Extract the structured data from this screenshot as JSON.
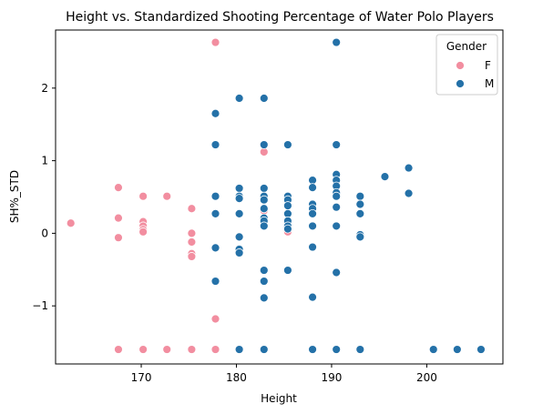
{
  "chart_data": {
    "type": "scatter",
    "title": "Height vs. Standardized Shooting Percentage of Water Polo Players",
    "xlabel": "Height",
    "ylabel": "SH%_STD",
    "xlim": [
      161,
      208
    ],
    "ylim": [
      -1.8,
      2.8
    ],
    "xticks": [
      170,
      180,
      190,
      200
    ],
    "yticks": [
      -1,
      0,
      1,
      2
    ],
    "ytick_labels": [
      "−1",
      "0",
      "1",
      "2"
    ],
    "grid": false,
    "legend": {
      "title": "Gender",
      "position": "top-right"
    },
    "series": [
      {
        "name": "F",
        "color": "#f28ea0",
        "points": [
          [
            162.6,
            0.14
          ],
          [
            167.6,
            0.63
          ],
          [
            167.6,
            0.21
          ],
          [
            167.6,
            -0.06
          ],
          [
            167.6,
            -1.6
          ],
          [
            170.2,
            0.51
          ],
          [
            170.2,
            0.16
          ],
          [
            170.2,
            0.1
          ],
          [
            170.2,
            0.05
          ],
          [
            170.2,
            0.02
          ],
          [
            170.2,
            -1.6
          ],
          [
            172.7,
            0.51
          ],
          [
            172.7,
            -1.6
          ],
          [
            175.3,
            0.34
          ],
          [
            175.3,
            0.0
          ],
          [
            175.3,
            -0.12
          ],
          [
            175.3,
            -0.28
          ],
          [
            175.3,
            -0.32
          ],
          [
            175.3,
            -1.6
          ],
          [
            177.8,
            2.63
          ],
          [
            177.8,
            -1.18
          ],
          [
            177.8,
            -1.6
          ],
          [
            180.3,
            -1.6
          ],
          [
            182.9,
            1.12
          ],
          [
            182.9,
            0.31
          ],
          [
            185.4,
            0.05
          ],
          [
            185.4,
            0.02
          ]
        ]
      },
      {
        "name": "M",
        "color": "#2471a8",
        "points": [
          [
            177.8,
            1.65
          ],
          [
            177.8,
            1.22
          ],
          [
            177.8,
            0.51
          ],
          [
            177.8,
            0.27
          ],
          [
            177.8,
            -0.2
          ],
          [
            177.8,
            -0.66
          ],
          [
            180.3,
            1.86
          ],
          [
            180.3,
            0.62
          ],
          [
            180.3,
            0.51
          ],
          [
            180.3,
            0.48
          ],
          [
            180.3,
            0.27
          ],
          [
            180.3,
            -0.05
          ],
          [
            180.3,
            -0.22
          ],
          [
            180.3,
            -0.27
          ],
          [
            180.3,
            -1.6
          ],
          [
            182.9,
            1.86
          ],
          [
            182.9,
            1.22
          ],
          [
            182.9,
            0.62
          ],
          [
            182.9,
            0.51
          ],
          [
            182.9,
            0.46
          ],
          [
            182.9,
            0.34
          ],
          [
            182.9,
            0.21
          ],
          [
            182.9,
            0.17
          ],
          [
            182.9,
            0.1
          ],
          [
            182.9,
            -0.51
          ],
          [
            182.9,
            -0.66
          ],
          [
            182.9,
            -0.89
          ],
          [
            182.9,
            -1.6
          ],
          [
            185.4,
            1.22
          ],
          [
            185.4,
            0.51
          ],
          [
            185.4,
            0.46
          ],
          [
            185.4,
            0.38
          ],
          [
            185.4,
            0.27
          ],
          [
            185.4,
            0.17
          ],
          [
            185.4,
            0.1
          ],
          [
            185.4,
            0.06
          ],
          [
            185.4,
            -0.51
          ],
          [
            188.0,
            0.73
          ],
          [
            188.0,
            0.63
          ],
          [
            188.0,
            0.4
          ],
          [
            188.0,
            0.34
          ],
          [
            188.0,
            0.27
          ],
          [
            188.0,
            0.1
          ],
          [
            188.0,
            -0.19
          ],
          [
            188.0,
            -0.88
          ],
          [
            188.0,
            -1.6
          ],
          [
            190.5,
            2.63
          ],
          [
            190.5,
            1.22
          ],
          [
            190.5,
            0.81
          ],
          [
            190.5,
            0.73
          ],
          [
            190.5,
            0.65
          ],
          [
            190.5,
            0.56
          ],
          [
            190.5,
            0.51
          ],
          [
            190.5,
            0.36
          ],
          [
            190.5,
            0.1
          ],
          [
            190.5,
            -0.54
          ],
          [
            190.5,
            -1.6
          ],
          [
            193.0,
            0.51
          ],
          [
            193.0,
            0.4
          ],
          [
            193.0,
            0.27
          ],
          [
            193.0,
            -0.02
          ],
          [
            193.0,
            -0.05
          ],
          [
            193.0,
            -1.6
          ],
          [
            195.6,
            0.78
          ],
          [
            198.1,
            0.9
          ],
          [
            198.1,
            0.55
          ],
          [
            200.7,
            -1.6
          ],
          [
            203.2,
            -1.6
          ],
          [
            205.7,
            -1.6
          ]
        ]
      }
    ]
  }
}
